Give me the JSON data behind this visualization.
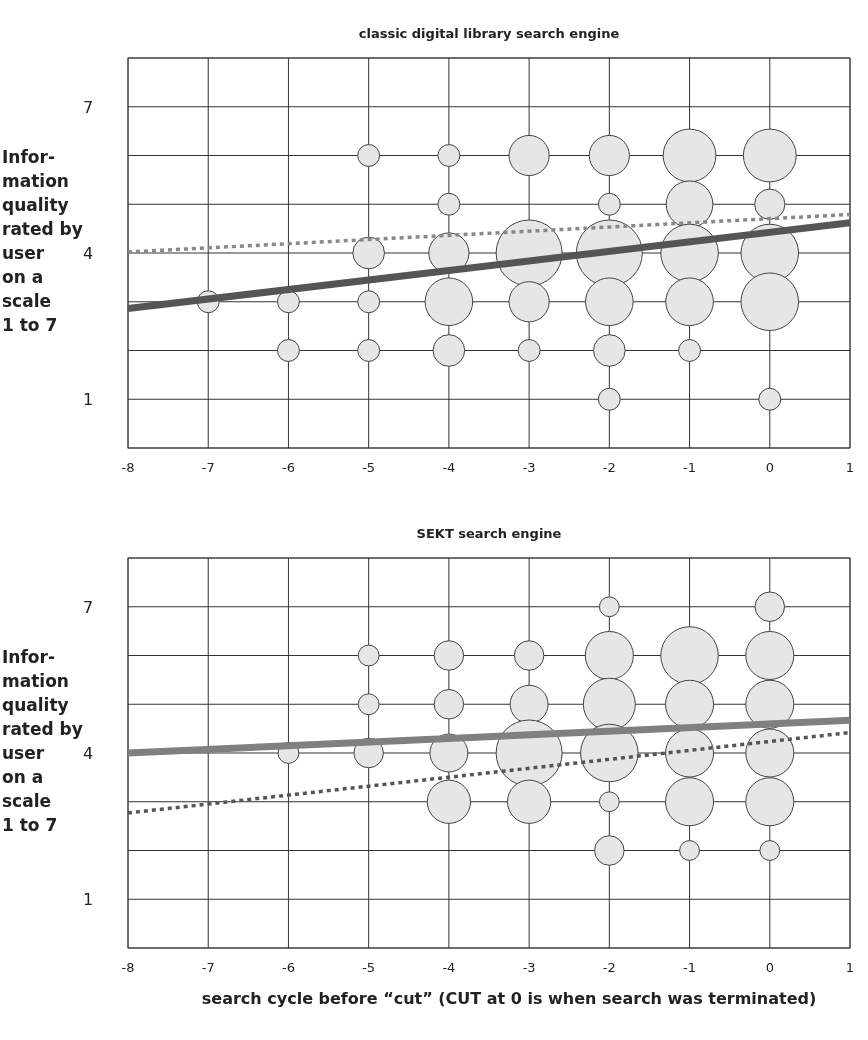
{
  "chart_data": [
    {
      "type": "bubble",
      "title": "classic digital library search engine",
      "ylabel": "Infor-\nmation\nquality\nrated by\nuser\non a\nscale\n1 to 7",
      "xlim": [
        -8,
        1
      ],
      "xticks": [
        -8,
        -7,
        -6,
        -5,
        -4,
        -3,
        -2,
        -1,
        0,
        1
      ],
      "ylim": [
        0,
        8
      ],
      "yticks": [
        {
          "value": 0,
          "label": null
        },
        1,
        {
          "value": 2,
          "label": null
        },
        {
          "value": 3,
          "label": null
        },
        4,
        {
          "value": 5,
          "label": null
        },
        {
          "value": 6,
          "label": null
        },
        7,
        {
          "value": 8,
          "label": null
        }
      ],
      "grid": true,
      "series": [
        {
          "color": "#e6e6e6",
          "x": [
            -5,
            -4,
            -3,
            -2,
            -1,
            0,
            -4,
            -2,
            -1,
            0,
            -5,
            -4,
            -3,
            -2,
            -1,
            0,
            -7,
            -6,
            -5,
            -4,
            -3,
            -2,
            -1,
            0,
            -6,
            -5,
            -4,
            -3,
            -2,
            -1,
            -2,
            0
          ],
          "values": [
            6,
            6,
            6,
            6,
            6,
            6,
            5,
            5,
            5,
            5,
            4,
            4,
            4,
            4,
            4,
            4,
            3,
            3,
            3,
            3,
            3,
            3,
            3,
            3,
            2,
            2,
            2,
            2,
            2,
            2,
            1,
            1
          ],
          "sizes": [
            0.11,
            0.11,
            0.37,
            0.37,
            0.64,
            0.64,
            0.11,
            0.11,
            0.5,
            0.21,
            0.23,
            0.37,
            1,
            1,
            0.76,
            0.76,
            0.11,
            0.11,
            0.11,
            0.52,
            0.37,
            0.52,
            0.52,
            0.76,
            0.11,
            0.11,
            0.23,
            0.11,
            0.23,
            0.11,
            0.11,
            0.11
          ]
        },
        {
          "type": "line",
          "color": "#555555",
          "line_style": "solid",
          "x": [
            -8,
            1
          ],
          "values": [
            2.86,
            4.62
          ]
        },
        {
          "type": "line",
          "color": "#888888",
          "line_style": "dotted",
          "x": [
            -8,
            1
          ],
          "values": [
            4.02,
            4.79
          ]
        }
      ]
    },
    {
      "type": "bubble",
      "title": "SEKT search engine",
      "ylabel": "Infor-\nmation\nquality\nrated by\nuser\non a\nscale\n1 to 7",
      "xlabel": "search cycle before “cut” (CUT at 0 is when search was terminated)",
      "xlim": [
        -8,
        1
      ],
      "xticks": [
        -8,
        -7,
        -6,
        -5,
        -4,
        -3,
        -2,
        -1,
        0,
        1
      ],
      "ylim": [
        0,
        8
      ],
      "yticks": [
        {
          "value": 0,
          "label": null
        },
        1,
        {
          "value": 2,
          "label": null
        },
        {
          "value": 3,
          "label": null
        },
        4,
        {
          "value": 5,
          "label": null
        },
        {
          "value": 6,
          "label": null
        },
        7,
        {
          "value": 8,
          "label": null
        }
      ],
      "grid": true,
      "series": [
        {
          "color": "#e6e6e6",
          "x": [
            -2,
            0,
            -5,
            -4,
            -3,
            -2,
            -1,
            0,
            -5,
            -4,
            -3,
            -2,
            -1,
            0,
            -6,
            -5,
            -4,
            -3,
            -2,
            -1,
            0,
            -4,
            -3,
            -2,
            -1,
            0,
            -2,
            -1,
            0
          ],
          "values": [
            7,
            7,
            6,
            6,
            6,
            6,
            6,
            6,
            5,
            5,
            5,
            5,
            5,
            5,
            4,
            4,
            4,
            4,
            4,
            4,
            4,
            3,
            3,
            3,
            3,
            3,
            2,
            2,
            2
          ],
          "sizes": [
            0.09,
            0.2,
            0.1,
            0.2,
            0.2,
            0.53,
            0.76,
            0.53,
            0.1,
            0.2,
            0.33,
            0.62,
            0.53,
            0.53,
            0.1,
            0.2,
            0.33,
            1,
            0.76,
            0.53,
            0.53,
            0.43,
            0.43,
            0.09,
            0.53,
            0.53,
            0.2,
            0.09,
            0.09
          ]
        },
        {
          "type": "line",
          "color": "#808080",
          "line_style": "solid",
          "x": [
            -8,
            1
          ],
          "values": [
            4.0,
            4.67
          ]
        },
        {
          "type": "line",
          "color": "#555555",
          "line_style": "dotted",
          "x": [
            -8,
            1
          ],
          "values": [
            2.77,
            4.42
          ]
        }
      ]
    }
  ]
}
